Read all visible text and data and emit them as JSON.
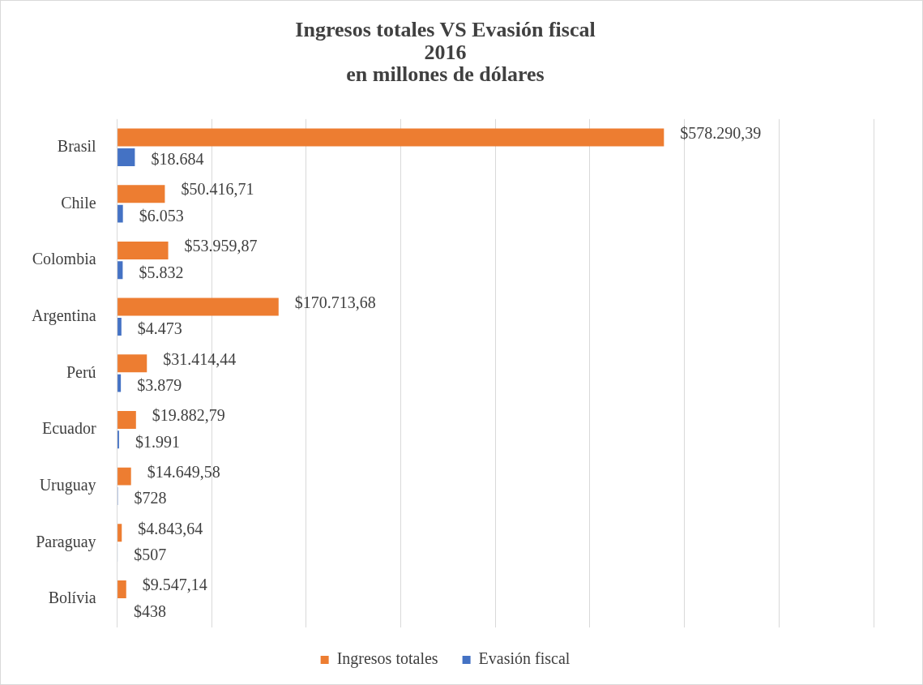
{
  "chart_data": {
    "type": "bar",
    "orientation": "horizontal",
    "title": "Ingresos totales VS Evasión fiscal\n2016\nen millones de dólares",
    "categories": [
      "Brasil",
      "Chile",
      "Colombia",
      "Argentina",
      "Perú",
      "Ecuador",
      "Uruguay",
      "Paraguay",
      "Bolívia"
    ],
    "series": [
      {
        "name": "Ingresos totales",
        "color": "#ed7d31",
        "values": [
          578290.39,
          50416.71,
          53959.87,
          170713.68,
          31414.44,
          19882.79,
          14649.58,
          4843.64,
          9547.14
        ],
        "value_labels": [
          "$578.290,39",
          "$50.416,71",
          "$53.959,87",
          "$170.713,68",
          "$31.414,44",
          "$19.882,79",
          "$14.649,58",
          "$4.843,64",
          "$9.547,14"
        ]
      },
      {
        "name": "Evasión fiscal",
        "color": "#4472c4",
        "values": [
          18684,
          6053,
          5832,
          4473,
          3879,
          1991,
          728,
          507,
          438
        ],
        "value_labels": [
          "$18.684",
          "$6.053",
          "$5.832",
          "$4.473",
          "$3.879",
          "$1.991",
          "$728",
          "$507",
          "$438"
        ]
      }
    ],
    "xlim": [
      0,
      800000
    ],
    "xticks": [
      {
        "value": 0,
        "label": null
      },
      {
        "value": 100000,
        "label": null
      },
      {
        "value": 200000,
        "label": null
      },
      {
        "value": 300000,
        "label": null
      },
      {
        "value": 400000,
        "label": null
      },
      {
        "value": 500000,
        "label": null
      },
      {
        "value": 600000,
        "label": null
      },
      {
        "value": 700000,
        "label": null
      },
      {
        "value": 800000,
        "label": null
      }
    ],
    "tick_labels": "y",
    "grid": "x",
    "legend": "bottom"
  }
}
